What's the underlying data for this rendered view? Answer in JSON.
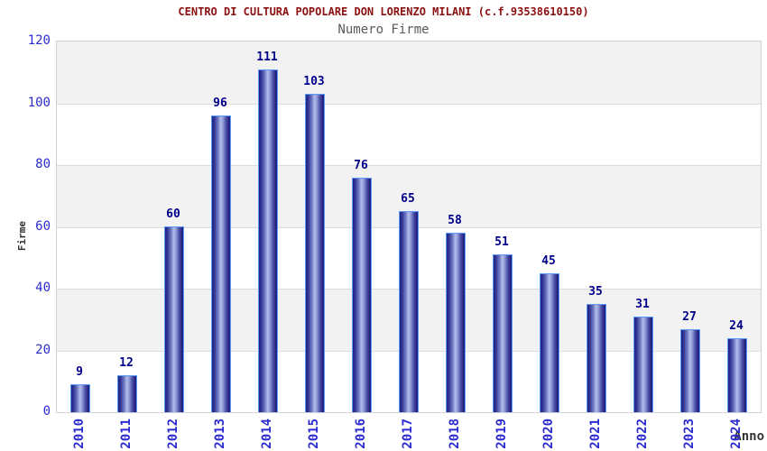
{
  "chart_data": {
    "type": "bar",
    "title": "CENTRO DI CULTURA POPOLARE DON LORENZO MILANI (c.f.93538610150)",
    "subtitle": "Numero Firme",
    "xlabel": "Anno",
    "ylabel": "Firme",
    "categories": [
      "2010",
      "2011",
      "2012",
      "2013",
      "2014",
      "2015",
      "2016",
      "2017",
      "2018",
      "2019",
      "2020",
      "2021",
      "2022",
      "2023",
      "2024"
    ],
    "values": [
      9,
      12,
      60,
      96,
      111,
      103,
      76,
      65,
      58,
      51,
      45,
      35,
      31,
      27,
      24
    ],
    "ylim": [
      0,
      120
    ],
    "yticks": [
      0,
      20,
      40,
      60,
      80,
      100,
      120
    ],
    "grid": "horizontal gridlines with alternating shaded bands",
    "legend_position": "none",
    "value_labels": "above each bar"
  },
  "colors": {
    "title": "#8b1010",
    "subtitle": "#595959",
    "tick_labels": "#2b2bd0",
    "value_labels": "#00008b",
    "axis_titles": "#333333",
    "bar_dark": "#202080",
    "bar_highlight": "#b3bce9",
    "bar_border": "#5a9bf6",
    "band_shaded": "#f2f2f2",
    "band_plain": "#ffffff",
    "gridline": "#dcdcdc",
    "plot_border": "#d0d0d0"
  }
}
